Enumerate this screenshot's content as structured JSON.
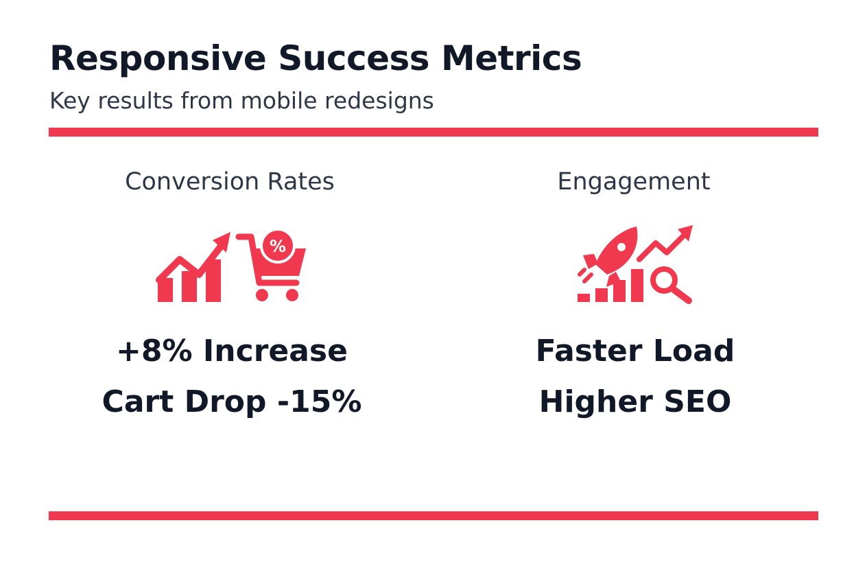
{
  "header": {
    "title": "Responsive Success Metrics",
    "subtitle": "Key results from mobile redesigns"
  },
  "columns": [
    {
      "heading": "Conversion Rates",
      "lines": [
        "+8% Increase",
        "Cart Drop -15%"
      ]
    },
    {
      "heading": "Engagement",
      "lines": [
        "Faster Load",
        "Higher SEO"
      ]
    }
  ]
}
